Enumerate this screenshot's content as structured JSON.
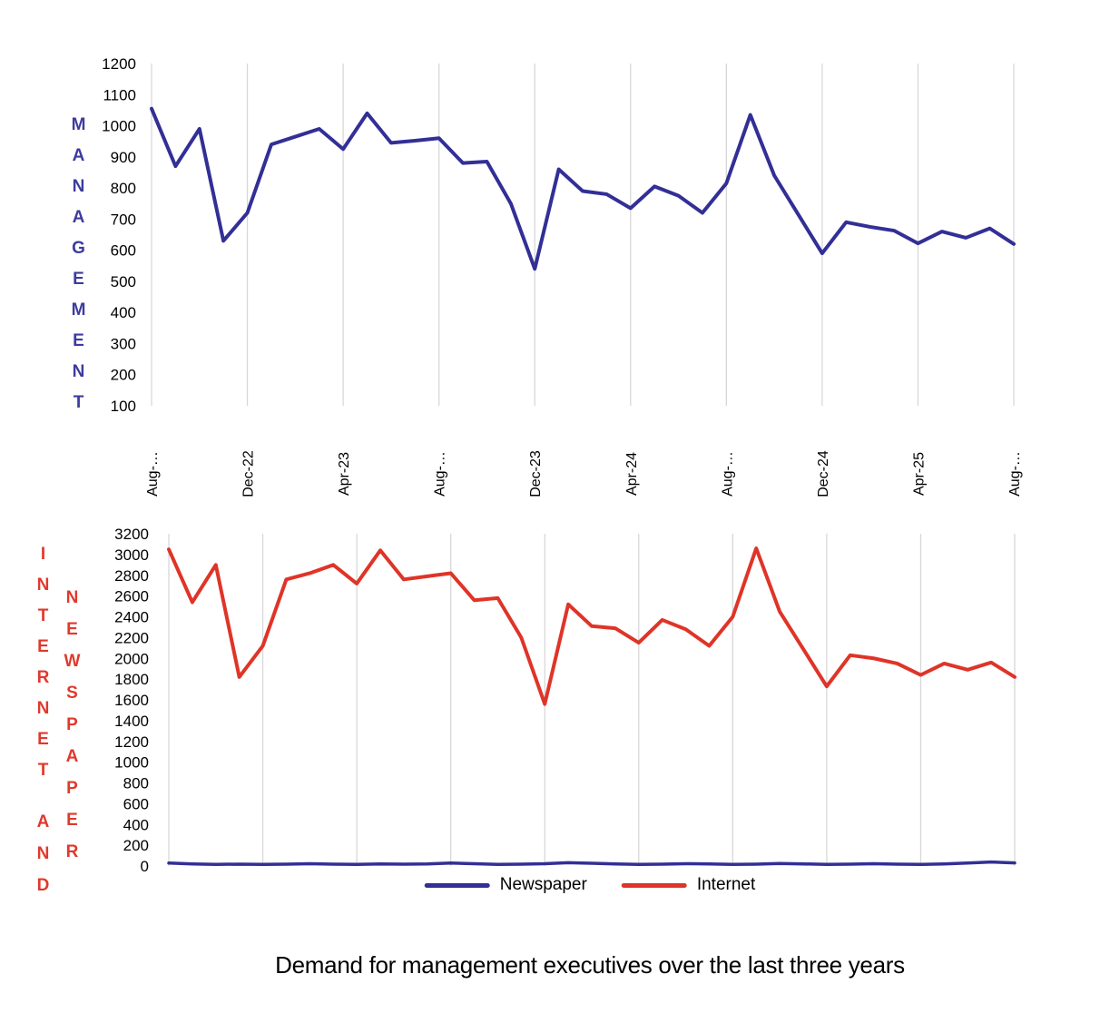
{
  "page": {
    "caption": "Demand for management executives over the last three years"
  },
  "colors": {
    "management_line": "#322f96",
    "internet_line": "#df3428",
    "newspaper_line": "#322f96",
    "gridline": "#d8d8d8",
    "tick_text": "#000000",
    "blue_axis_label": "#3d3b9e",
    "red_axis_label": "#e0392d"
  },
  "legend": {
    "items": [
      {
        "label": "Newspaper",
        "color": "#322f96"
      },
      {
        "label": "Internet",
        "color": "#df3428"
      }
    ]
  },
  "chart_data": [
    {
      "type": "line",
      "title": "",
      "y_axis_label": "MANAGEMENT",
      "ylim": [
        100,
        1200
      ],
      "ytick_step": 100,
      "yticks": [
        1200,
        1100,
        1000,
        900,
        800,
        700,
        600,
        500,
        400,
        300,
        200,
        100
      ],
      "x_tick_labels": [
        "Aug-…",
        "Dec-22",
        "Apr-23",
        "Aug-…",
        "Dec-23",
        "Apr-24",
        "Aug-…",
        "Dec-24",
        "Apr-25",
        "Aug-…"
      ],
      "x_tick_positions": [
        0,
        4,
        8,
        12,
        16,
        20,
        24,
        28,
        32,
        36
      ],
      "grid": "vertical",
      "series": [
        {
          "name": "Management",
          "color": "#322f96",
          "values": [
            1055,
            870,
            990,
            630,
            720,
            940,
            965,
            990,
            925,
            1040,
            945,
            952,
            960,
            880,
            885,
            750,
            540,
            860,
            790,
            780,
            735,
            805,
            775,
            720,
            815,
            1035,
            840,
            715,
            590,
            690,
            675,
            663,
            622,
            660,
            640,
            670,
            620
          ]
        }
      ]
    },
    {
      "type": "line",
      "title": "",
      "y_axis_label": "INTERNET AND NEWSPAPER",
      "y_axis_label_parts": [
        "INTERNET",
        "AND",
        "NEWSPAPER"
      ],
      "ylim": [
        0,
        3200
      ],
      "ytick_step": 200,
      "yticks": [
        3200,
        3000,
        2800,
        2600,
        2400,
        2200,
        2000,
        1800,
        1600,
        1400,
        1200,
        1000,
        800,
        600,
        400,
        200,
        0
      ],
      "x_tick_labels": null,
      "x_tick_positions": [
        0,
        4,
        8,
        12,
        16,
        20,
        24,
        28,
        32,
        36
      ],
      "grid": "vertical",
      "series": [
        {
          "name": "Newspaper",
          "color": "#322f96",
          "values": [
            28,
            20,
            15,
            18,
            15,
            18,
            22,
            18,
            15,
            20,
            18,
            20,
            28,
            22,
            15,
            18,
            22,
            32,
            26,
            20,
            15,
            18,
            22,
            20,
            15,
            18,
            24,
            20,
            15,
            18,
            22,
            18,
            15,
            20,
            28,
            38,
            30
          ]
        },
        {
          "name": "Internet",
          "color": "#df3428",
          "values": [
            3050,
            2540,
            2900,
            1820,
            2120,
            2760,
            2820,
            2900,
            2720,
            3040,
            2760,
            2790,
            2820,
            2560,
            2580,
            2200,
            1560,
            2520,
            2310,
            2290,
            2150,
            2370,
            2280,
            2120,
            2400,
            3060,
            2450,
            2090,
            1730,
            2030,
            2000,
            1950,
            1840,
            1950,
            1890,
            1960,
            1820
          ]
        }
      ]
    }
  ]
}
